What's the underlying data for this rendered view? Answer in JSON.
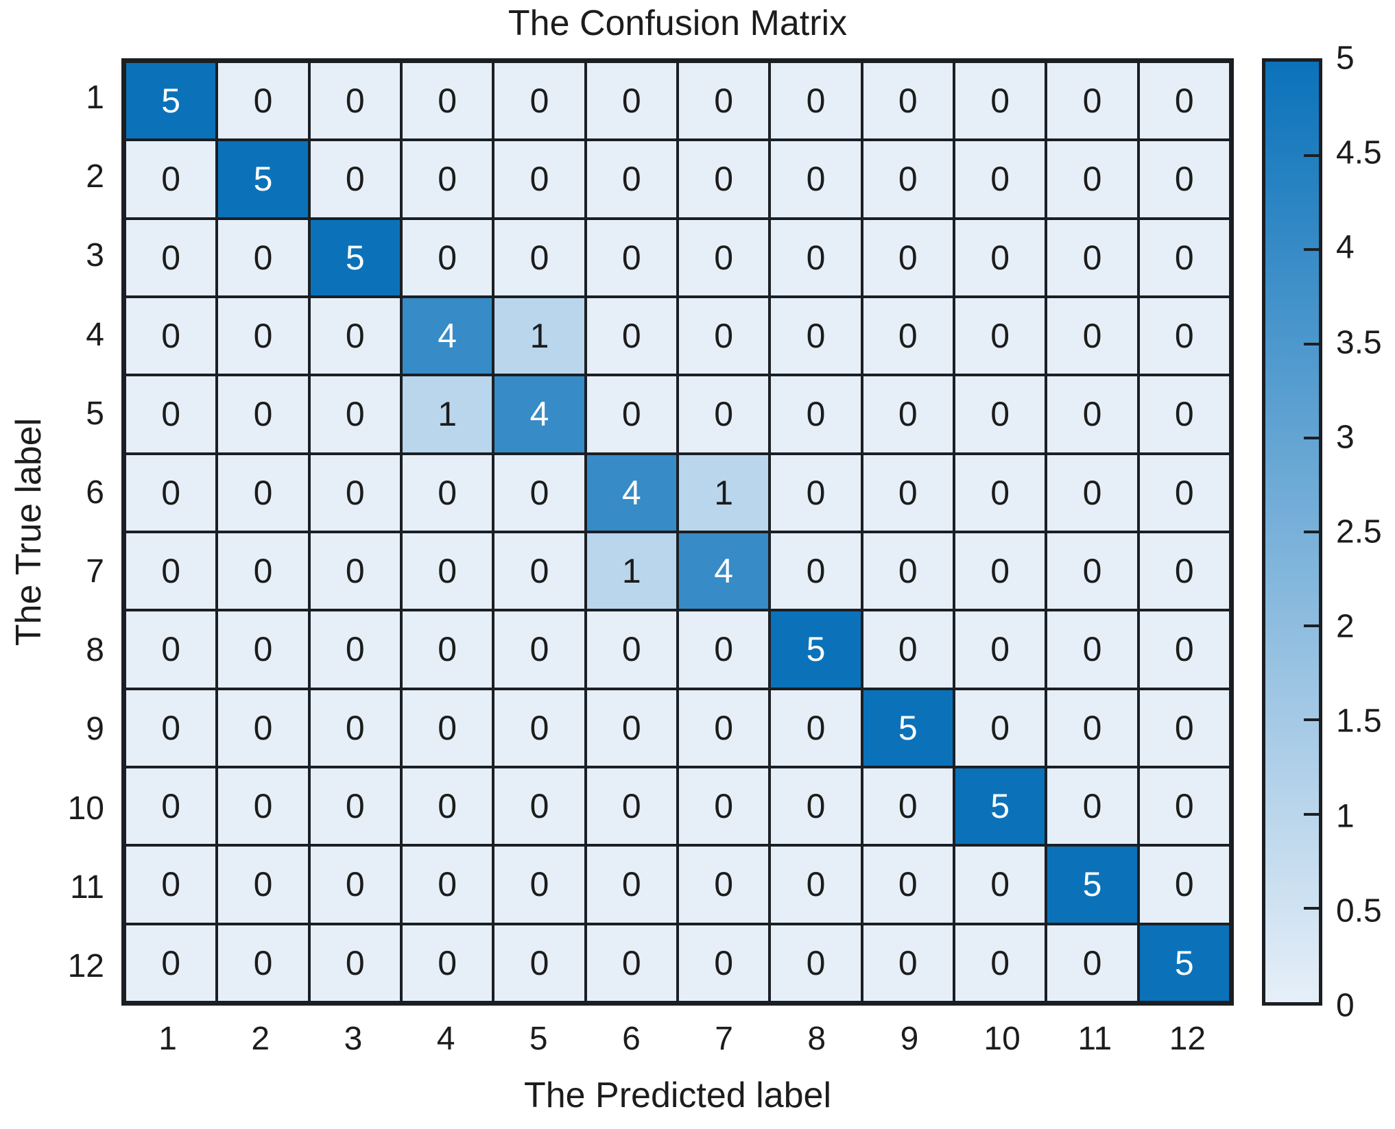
{
  "chart_data": {
    "type": "heatmap",
    "title": "The Confusion Matrix",
    "xlabel": "The Predicted label",
    "ylabel": "The True label",
    "x_tick_labels": [
      "1",
      "2",
      "3",
      "4",
      "5",
      "6",
      "7",
      "8",
      "9",
      "10",
      "11",
      "12"
    ],
    "y_tick_labels": [
      "1",
      "2",
      "3",
      "4",
      "5",
      "6",
      "7",
      "8",
      "9",
      "10",
      "11",
      "12"
    ],
    "values": [
      [
        5,
        0,
        0,
        0,
        0,
        0,
        0,
        0,
        0,
        0,
        0,
        0
      ],
      [
        0,
        5,
        0,
        0,
        0,
        0,
        0,
        0,
        0,
        0,
        0,
        0
      ],
      [
        0,
        0,
        5,
        0,
        0,
        0,
        0,
        0,
        0,
        0,
        0,
        0
      ],
      [
        0,
        0,
        0,
        4,
        1,
        0,
        0,
        0,
        0,
        0,
        0,
        0
      ],
      [
        0,
        0,
        0,
        1,
        4,
        0,
        0,
        0,
        0,
        0,
        0,
        0
      ],
      [
        0,
        0,
        0,
        0,
        0,
        4,
        1,
        0,
        0,
        0,
        0,
        0
      ],
      [
        0,
        0,
        0,
        0,
        0,
        1,
        4,
        0,
        0,
        0,
        0,
        0
      ],
      [
        0,
        0,
        0,
        0,
        0,
        0,
        0,
        5,
        0,
        0,
        0,
        0
      ],
      [
        0,
        0,
        0,
        0,
        0,
        0,
        0,
        0,
        5,
        0,
        0,
        0
      ],
      [
        0,
        0,
        0,
        0,
        0,
        0,
        0,
        0,
        0,
        5,
        0,
        0
      ],
      [
        0,
        0,
        0,
        0,
        0,
        0,
        0,
        0,
        0,
        0,
        5,
        0
      ],
      [
        0,
        0,
        0,
        0,
        0,
        0,
        0,
        0,
        0,
        0,
        0,
        5
      ]
    ],
    "vmin": 0,
    "vmax": 5,
    "colormap_low": "#e6eff8",
    "colormap_high": "#0b72ba",
    "cell_text_light": "#ffffff",
    "cell_text_dark": "#1c1c1c",
    "text_color_threshold": 2.5,
    "grid_on": true,
    "legend_position": "right",
    "colorbar_ticks": [
      {
        "label": "5",
        "value": 5
      },
      {
        "label": "4.5",
        "value": 4.5
      },
      {
        "label": "4",
        "value": 4
      },
      {
        "label": "3.5",
        "value": 3.5
      },
      {
        "label": "3",
        "value": 3
      },
      {
        "label": "2.5",
        "value": 2.5
      },
      {
        "label": "2",
        "value": 2
      },
      {
        "label": "1.5",
        "value": 1.5
      },
      {
        "label": "1",
        "value": 1
      },
      {
        "label": "0.5",
        "value": 0.5
      },
      {
        "label": "0",
        "value": 0
      }
    ]
  }
}
